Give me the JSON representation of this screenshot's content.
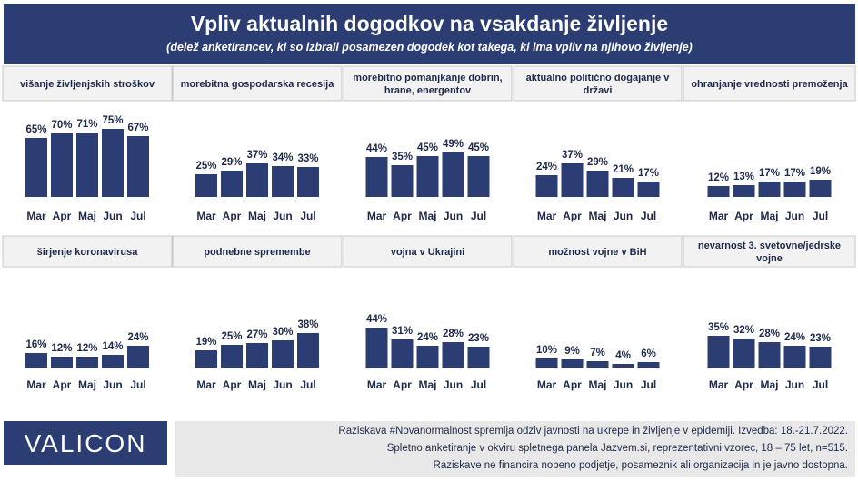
{
  "header": {
    "title": "Vpliv aktualnih dogodkov na vsakdanje življenje",
    "subtitle": "(delež anketirancev, ki so izbrali posamezen dogodek kot takega, ki ima vpliv na njihovo življenje)"
  },
  "colors": {
    "header_bg": "#2c3d74",
    "bar": "#2c3d74",
    "panel_header_bg": "#f2f2f2",
    "footnote_bg": "#e8e8e8"
  },
  "logo": {
    "text": "VALICON"
  },
  "footnote": {
    "line1": "Raziskava #Novanormalnost spremlja odziv javnosti na ukrepe in življenje v epidemiji. Izvedba: 18.-21.7.2022.",
    "line2": "Spletno anketiranje v okviru spletnega panela Jazvem.si, reprezentativni vzorec, 18 – 75 let, n=515.",
    "line3": "Raziskave ne financira nobeno podjetje, posameznik ali organizacija in je javno dostopna."
  },
  "chart_data": [
    {
      "type": "bar",
      "title": [
        "višanje življenjskih stroškov"
      ],
      "categories": [
        "Mar",
        "Apr",
        "Maj",
        "Jun",
        "Jul"
      ],
      "values": [
        65,
        70,
        71,
        75,
        67
      ],
      "unit": "%"
    },
    {
      "type": "bar",
      "title": [
        "morebitna gospodarska recesija"
      ],
      "categories": [
        "Mar",
        "Apr",
        "Maj",
        "Jun",
        "Jul"
      ],
      "values": [
        25,
        29,
        37,
        34,
        33
      ],
      "unit": "%"
    },
    {
      "type": "bar",
      "title": [
        "morebitno pomanjkanje dobrin,",
        "hrane, energentov"
      ],
      "categories": [
        "Mar",
        "Apr",
        "Maj",
        "Jun",
        "Jul"
      ],
      "values": [
        44,
        35,
        45,
        49,
        45
      ],
      "unit": "%"
    },
    {
      "type": "bar",
      "title": [
        "aktualno politično dogajanje v",
        "državi"
      ],
      "categories": [
        "Mar",
        "Apr",
        "Maj",
        "Jun",
        "Jul"
      ],
      "values": [
        24,
        37,
        29,
        21,
        17
      ],
      "unit": "%"
    },
    {
      "type": "bar",
      "title": [
        "ohranjanje vrednosti premoženja"
      ],
      "categories": [
        "Mar",
        "Apr",
        "Maj",
        "Jun",
        "Jul"
      ],
      "values": [
        12,
        13,
        17,
        17,
        19
      ],
      "unit": "%"
    },
    {
      "type": "bar",
      "title": [
        "širjenje koronavirusa"
      ],
      "categories": [
        "Mar",
        "Apr",
        "Maj",
        "Jun",
        "Jul"
      ],
      "values": [
        16,
        12,
        12,
        14,
        24
      ],
      "unit": "%"
    },
    {
      "type": "bar",
      "title": [
        "podnebne spremembe"
      ],
      "categories": [
        "Mar",
        "Apr",
        "Maj",
        "Jun",
        "Jul"
      ],
      "values": [
        19,
        25,
        27,
        30,
        38
      ],
      "unit": "%"
    },
    {
      "type": "bar",
      "title": [
        "vojna v Ukrajini"
      ],
      "categories": [
        "Mar",
        "Apr",
        "Maj",
        "Jun",
        "Jul"
      ],
      "values": [
        44,
        31,
        24,
        28,
        23
      ],
      "unit": "%"
    },
    {
      "type": "bar",
      "title": [
        "možnost vojne v BiH"
      ],
      "categories": [
        "Mar",
        "Apr",
        "Maj",
        "Jun",
        "Jul"
      ],
      "values": [
        10,
        9,
        7,
        4,
        6
      ],
      "unit": "%"
    },
    {
      "type": "bar",
      "title": [
        "nevarnost 3. svetovne/jedrske",
        "vojne"
      ],
      "categories": [
        "Mar",
        "Apr",
        "Maj",
        "Jun",
        "Jul"
      ],
      "values": [
        35,
        32,
        28,
        24,
        23
      ],
      "unit": "%"
    }
  ]
}
